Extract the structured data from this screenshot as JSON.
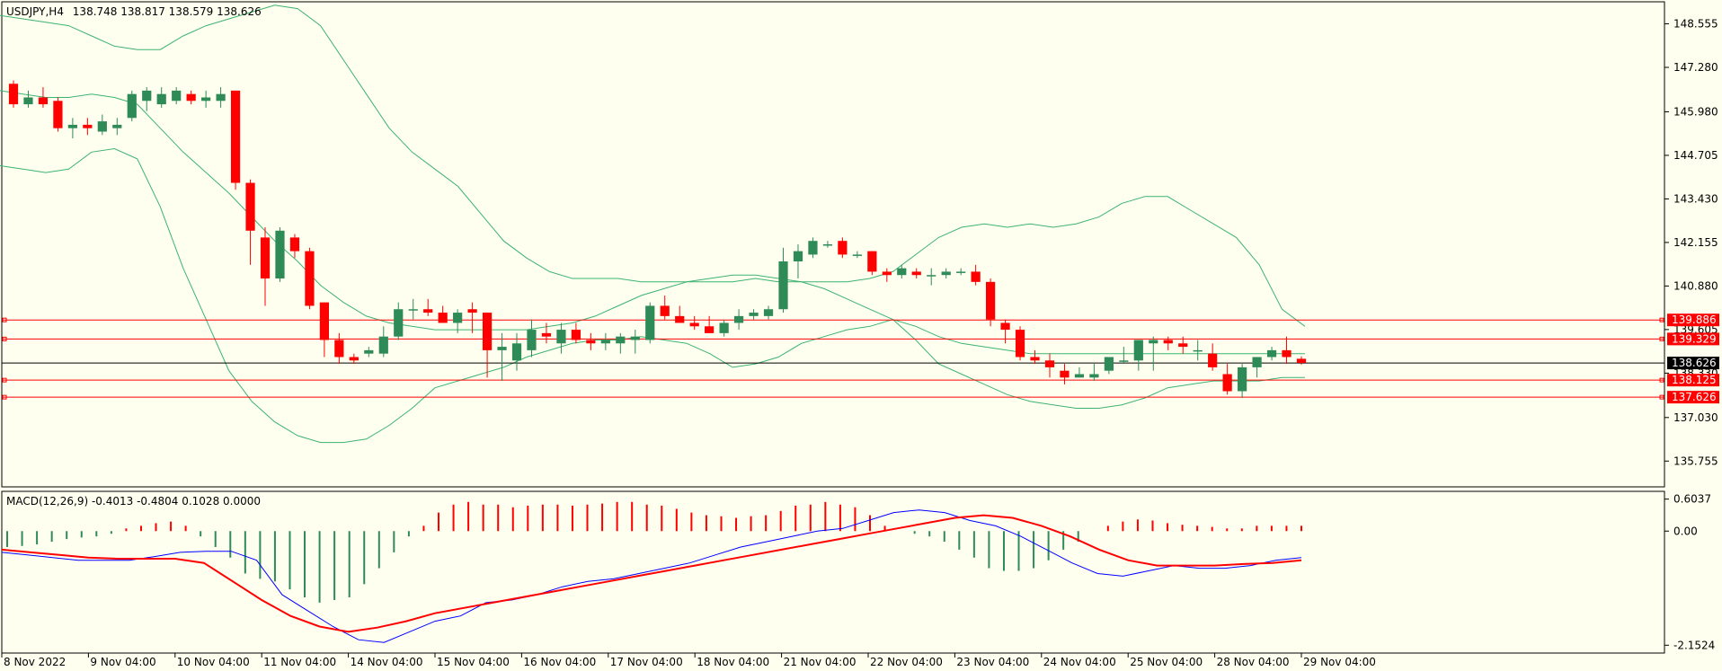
{
  "chart_data": [
    {
      "type": "candlestick",
      "title": "USDJPY,H4",
      "ohlc_text": "138.748 138.817 138.579 138.626",
      "ylim": [
        135.0,
        149.2
      ],
      "y_ticks": [
        "148.555",
        "147.280",
        "145.980",
        "144.705",
        "143.430",
        "142.155",
        "140.880",
        "139.605",
        "138.330",
        "137.030",
        "135.755"
      ],
      "x_labels": [
        "8 Nov 2022",
        "9 Nov 04:00",
        "10 Nov 04:00",
        "11 Nov 04:00",
        "14 Nov 04:00",
        "15 Nov 04:00",
        "16 Nov 04:00",
        "17 Nov 04:00",
        "18 Nov 04:00",
        "21 Nov 04:00",
        "22 Nov 04:00",
        "23 Nov 04:00",
        "24 Nov 04:00",
        "25 Nov 04:00",
        "28 Nov 04:00",
        "29 Nov 04:00"
      ],
      "current_price": "138.626",
      "price_levels": [
        {
          "value": 139.886,
          "label": "139.886"
        },
        {
          "value": 139.329,
          "label": "139.329"
        },
        {
          "value": 138.125,
          "label": "138.125"
        },
        {
          "value": 137.626,
          "label": "137.626"
        }
      ],
      "candles": [
        [
          146.8,
          146.9,
          146.1,
          146.2
        ],
        [
          146.2,
          146.6,
          146.1,
          146.4
        ],
        [
          146.4,
          146.7,
          146.1,
          146.2
        ],
        [
          146.3,
          146.4,
          145.4,
          145.5
        ],
        [
          145.5,
          145.8,
          145.2,
          145.6
        ],
        [
          145.6,
          145.8,
          145.3,
          145.5
        ],
        [
          145.4,
          145.9,
          145.3,
          145.7
        ],
        [
          145.5,
          145.8,
          145.3,
          145.6
        ],
        [
          145.8,
          146.6,
          145.7,
          146.5
        ],
        [
          146.3,
          146.7,
          146.0,
          146.6
        ],
        [
          146.2,
          146.7,
          146.1,
          146.5
        ],
        [
          146.3,
          146.7,
          146.2,
          146.6
        ],
        [
          146.5,
          146.6,
          146.2,
          146.3
        ],
        [
          146.3,
          146.6,
          146.1,
          146.4
        ],
        [
          146.3,
          146.7,
          146.1,
          146.5
        ],
        [
          146.6,
          146.6,
          143.7,
          143.9
        ],
        [
          143.9,
          144.0,
          141.5,
          142.5
        ],
        [
          142.3,
          142.6,
          140.3,
          141.1
        ],
        [
          141.1,
          142.6,
          141.0,
          142.5
        ],
        [
          142.3,
          142.4,
          141.7,
          141.9
        ],
        [
          141.9,
          142.0,
          140.2,
          140.3
        ],
        [
          140.4,
          140.4,
          138.8,
          139.3
        ],
        [
          139.3,
          139.5,
          138.6,
          138.8
        ],
        [
          138.8,
          138.9,
          138.6,
          138.7
        ],
        [
          138.9,
          139.1,
          138.8,
          139.0
        ],
        [
          138.9,
          139.7,
          138.8,
          139.4
        ],
        [
          139.4,
          140.4,
          139.3,
          140.2
        ],
        [
          140.2,
          140.5,
          139.9,
          140.2
        ],
        [
          140.2,
          140.5,
          140.0,
          140.1
        ],
        [
          140.1,
          140.3,
          139.9,
          139.8
        ],
        [
          139.8,
          140.2,
          139.5,
          140.1
        ],
        [
          140.2,
          140.4,
          139.5,
          140.1
        ],
        [
          140.1,
          140.1,
          138.2,
          139.0
        ],
        [
          139.0,
          139.5,
          138.1,
          139.1
        ],
        [
          138.7,
          139.5,
          138.4,
          139.2
        ],
        [
          139.0,
          139.9,
          138.8,
          139.6
        ],
        [
          139.5,
          139.8,
          139.2,
          139.4
        ],
        [
          139.2,
          139.8,
          138.9,
          139.6
        ],
        [
          139.6,
          139.8,
          139.2,
          139.3
        ],
        [
          139.3,
          139.5,
          139.0,
          139.2
        ],
        [
          139.2,
          139.5,
          139.0,
          139.3
        ],
        [
          139.2,
          139.5,
          138.9,
          139.4
        ],
        [
          139.3,
          139.6,
          138.9,
          139.4
        ],
        [
          139.3,
          140.4,
          139.2,
          140.3
        ],
        [
          140.3,
          140.6,
          139.9,
          140.0
        ],
        [
          140.0,
          140.3,
          139.8,
          139.8
        ],
        [
          139.8,
          140.0,
          139.6,
          139.7
        ],
        [
          139.7,
          140.0,
          139.5,
          139.5
        ],
        [
          139.5,
          139.9,
          139.4,
          139.8
        ],
        [
          139.8,
          140.2,
          139.6,
          140.0
        ],
        [
          140.0,
          140.2,
          139.9,
          140.1
        ],
        [
          140.0,
          140.3,
          139.9,
          140.2
        ],
        [
          140.2,
          142.0,
          140.1,
          141.6
        ],
        [
          141.6,
          142.1,
          141.1,
          141.9
        ],
        [
          141.8,
          142.3,
          141.7,
          142.2
        ],
        [
          142.1,
          142.2,
          142.0,
          142.1
        ],
        [
          142.2,
          142.3,
          141.7,
          141.8
        ],
        [
          141.8,
          141.9,
          141.7,
          141.8
        ],
        [
          141.9,
          141.9,
          141.2,
          141.3
        ],
        [
          141.3,
          141.4,
          141.0,
          141.2
        ],
        [
          141.2,
          141.5,
          141.1,
          141.4
        ],
        [
          141.3,
          141.4,
          141.1,
          141.2
        ],
        [
          141.2,
          141.4,
          140.9,
          141.2
        ],
        [
          141.2,
          141.4,
          141.1,
          141.3
        ],
        [
          141.3,
          141.4,
          141.2,
          141.3
        ],
        [
          141.3,
          141.5,
          140.9,
          141.0
        ],
        [
          141.0,
          141.1,
          139.7,
          139.9
        ],
        [
          139.8,
          139.9,
          139.2,
          139.6
        ],
        [
          139.6,
          139.7,
          138.7,
          138.8
        ],
        [
          138.8,
          139.0,
          138.6,
          138.7
        ],
        [
          138.7,
          138.9,
          138.2,
          138.5
        ],
        [
          138.4,
          138.6,
          138.0,
          138.2
        ],
        [
          138.2,
          138.5,
          138.2,
          138.3
        ],
        [
          138.2,
          138.6,
          138.1,
          138.3
        ],
        [
          138.4,
          138.8,
          138.3,
          138.8
        ],
        [
          138.7,
          139.1,
          138.6,
          138.7
        ],
        [
          138.7,
          139.3,
          138.4,
          139.3
        ],
        [
          139.2,
          139.4,
          138.4,
          139.3
        ],
        [
          139.3,
          139.4,
          139.0,
          139.2
        ],
        [
          139.2,
          139.4,
          138.9,
          139.1
        ],
        [
          139.0,
          139.3,
          138.7,
          139.0
        ],
        [
          138.9,
          139.2,
          138.4,
          138.5
        ],
        [
          138.3,
          138.6,
          137.7,
          137.8
        ],
        [
          137.8,
          138.6,
          137.6,
          138.5
        ],
        [
          138.5,
          138.8,
          138.2,
          138.8
        ],
        [
          138.8,
          139.1,
          138.7,
          139.0
        ],
        [
          139.0,
          139.4,
          138.6,
          138.8
        ],
        [
          138.75,
          138.82,
          138.58,
          138.63
        ]
      ],
      "bollinger": {
        "upper": [
          148.8,
          148.7,
          148.6,
          148.5,
          148.2,
          147.9,
          147.8,
          147.8,
          148.2,
          148.5,
          148.7,
          148.9,
          149.1,
          149.0,
          148.5,
          147.5,
          146.5,
          145.5,
          144.8,
          144.3,
          143.8,
          143.0,
          142.2,
          141.7,
          141.3,
          141.1,
          141.1,
          141.1,
          141.0,
          141.0,
          141.0,
          141.0,
          141.0,
          141.1,
          141.0,
          141.0,
          141.0,
          141.0,
          141.1,
          141.3,
          141.8,
          142.3,
          142.6,
          142.7,
          142.6,
          142.7,
          142.6,
          142.7,
          142.9,
          143.3,
          143.5,
          143.5,
          143.1,
          142.7,
          142.3,
          141.5,
          140.2,
          139.7
        ],
        "middle": [
          146.6,
          146.5,
          146.4,
          146.4,
          146.5,
          146.4,
          146.2,
          145.5,
          144.8,
          144.2,
          143.6,
          142.9,
          142.2,
          141.6,
          140.9,
          140.4,
          140.0,
          139.8,
          139.7,
          139.6,
          139.6,
          139.6,
          139.6,
          139.6,
          139.7,
          139.8,
          140.0,
          140.3,
          140.6,
          140.8,
          141.0,
          141.1,
          141.2,
          141.2,
          141.1,
          141.0,
          140.8,
          140.5,
          140.2,
          139.9,
          139.7,
          139.4,
          139.2,
          139.1,
          139.0,
          138.9,
          138.9,
          138.9,
          138.9,
          138.9,
          138.9,
          138.9,
          138.9,
          138.9,
          138.9,
          138.9,
          138.9,
          138.9
        ],
        "lower": [
          144.4,
          144.3,
          144.2,
          144.3,
          144.8,
          144.9,
          144.6,
          143.2,
          141.4,
          139.9,
          138.4,
          137.5,
          136.9,
          136.5,
          136.3,
          136.3,
          136.4,
          136.8,
          137.3,
          137.9,
          138.1,
          138.3,
          138.5,
          138.8,
          139.0,
          139.2,
          139.3,
          139.3,
          139.4,
          139.3,
          139.2,
          138.9,
          138.5,
          138.6,
          138.8,
          139.2,
          139.4,
          139.6,
          139.7,
          139.9,
          139.3,
          138.6,
          138.3,
          138.0,
          137.7,
          137.5,
          137.4,
          137.3,
          137.3,
          137.4,
          137.6,
          137.9,
          138.0,
          138.1,
          138.1,
          138.1,
          138.2,
          138.2
        ]
      },
      "indicator": {
        "title": "MACD(12,26,9) -0.4013 -0.4804 0.1028 0.0000",
        "ylim": [
          -2.3,
          0.75
        ],
        "y_ticks": [
          "0.6037",
          "0.00",
          "-2.1524"
        ],
        "histogram": [
          -0.3,
          -0.28,
          -0.25,
          -0.2,
          -0.15,
          -0.12,
          -0.1,
          -0.05,
          0.05,
          0.1,
          0.15,
          0.18,
          0.1,
          -0.1,
          -0.3,
          -0.5,
          -0.8,
          -0.9,
          -0.95,
          -1.1,
          -1.25,
          -1.35,
          -1.3,
          -1.25,
          -1.0,
          -0.7,
          -0.4,
          -0.1,
          0.1,
          0.35,
          0.5,
          0.55,
          0.5,
          0.5,
          0.45,
          0.48,
          0.5,
          0.5,
          0.48,
          0.5,
          0.52,
          0.55,
          0.55,
          0.5,
          0.48,
          0.42,
          0.35,
          0.3,
          0.28,
          0.25,
          0.28,
          0.3,
          0.38,
          0.48,
          0.5,
          0.55,
          0.5,
          0.45,
          0.3,
          0.1,
          0.0,
          -0.05,
          -0.1,
          -0.2,
          -0.35,
          -0.5,
          -0.7,
          -0.75,
          -0.75,
          -0.7,
          -0.55,
          -0.35,
          -0.2,
          0.0,
          0.1,
          0.18,
          0.22,
          0.2,
          0.15,
          0.12,
          0.1,
          0.08,
          0.05,
          0.05,
          0.1,
          0.1,
          0.1,
          0.1
        ],
        "macd": [
          -0.4,
          -0.45,
          -0.5,
          -0.55,
          -0.55,
          -0.55,
          -0.48,
          -0.4,
          -0.38,
          -0.38,
          -0.55,
          -1.2,
          -1.5,
          -1.8,
          -2.05,
          -2.1,
          -1.9,
          -1.7,
          -1.6,
          -1.35,
          -1.3,
          -1.2,
          -1.05,
          -0.95,
          -0.9,
          -0.8,
          -0.7,
          -0.6,
          -0.45,
          -0.3,
          -0.2,
          -0.1,
          0.0,
          0.05,
          0.2,
          0.35,
          0.4,
          0.35,
          0.2,
          0.1,
          -0.1,
          -0.35,
          -0.6,
          -0.8,
          -0.85,
          -0.75,
          -0.65,
          -0.7,
          -0.7,
          -0.65,
          -0.55,
          -0.5
        ],
        "signal": [
          -0.35,
          -0.4,
          -0.45,
          -0.5,
          -0.52,
          -0.52,
          -0.52,
          -0.6,
          -0.95,
          -1.3,
          -1.6,
          -1.8,
          -1.9,
          -1.82,
          -1.7,
          -1.55,
          -1.45,
          -1.35,
          -1.25,
          -1.15,
          -1.05,
          -0.95,
          -0.85,
          -0.75,
          -0.65,
          -0.55,
          -0.45,
          -0.35,
          -0.25,
          -0.15,
          -0.05,
          0.05,
          0.15,
          0.25,
          0.3,
          0.25,
          0.1,
          -0.1,
          -0.35,
          -0.55,
          -0.65,
          -0.65,
          -0.65,
          -0.62,
          -0.6,
          -0.55
        ]
      }
    }
  ],
  "colors": {
    "background": "#fffff0",
    "bull": "#2e8b57",
    "bear": "#ff0000",
    "bands": "#3cb371",
    "macd_line": "#0000ff",
    "signal_line": "#ff0000",
    "level_line": "#ff0000",
    "current_price_bg": "#000000",
    "level_tag_bg": "#ff0000"
  }
}
